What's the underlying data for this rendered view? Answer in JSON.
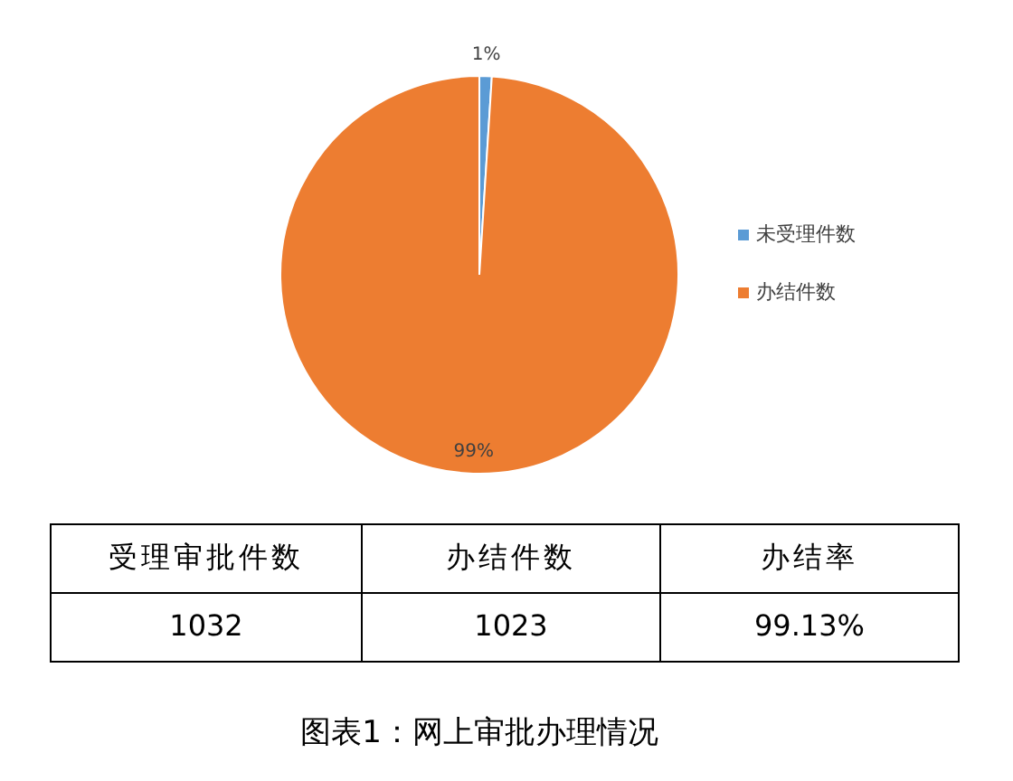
{
  "chart_data": [
    {
      "type": "pie",
      "categories": [
        "未受理件数",
        "办结件数"
      ],
      "values": [
        1,
        99
      ],
      "colors": [
        "#5b9bd5",
        "#ed7d31"
      ],
      "value_labels": [
        "1%",
        "99%"
      ],
      "legend": "right"
    },
    {
      "type": "other",
      "title": "图表1：网上审批办理情况",
      "categories": [
        "受理审批件数",
        "办结件数",
        "办结率"
      ],
      "value_labels": [
        "1032",
        "1023",
        "99.13%"
      ]
    }
  ]
}
